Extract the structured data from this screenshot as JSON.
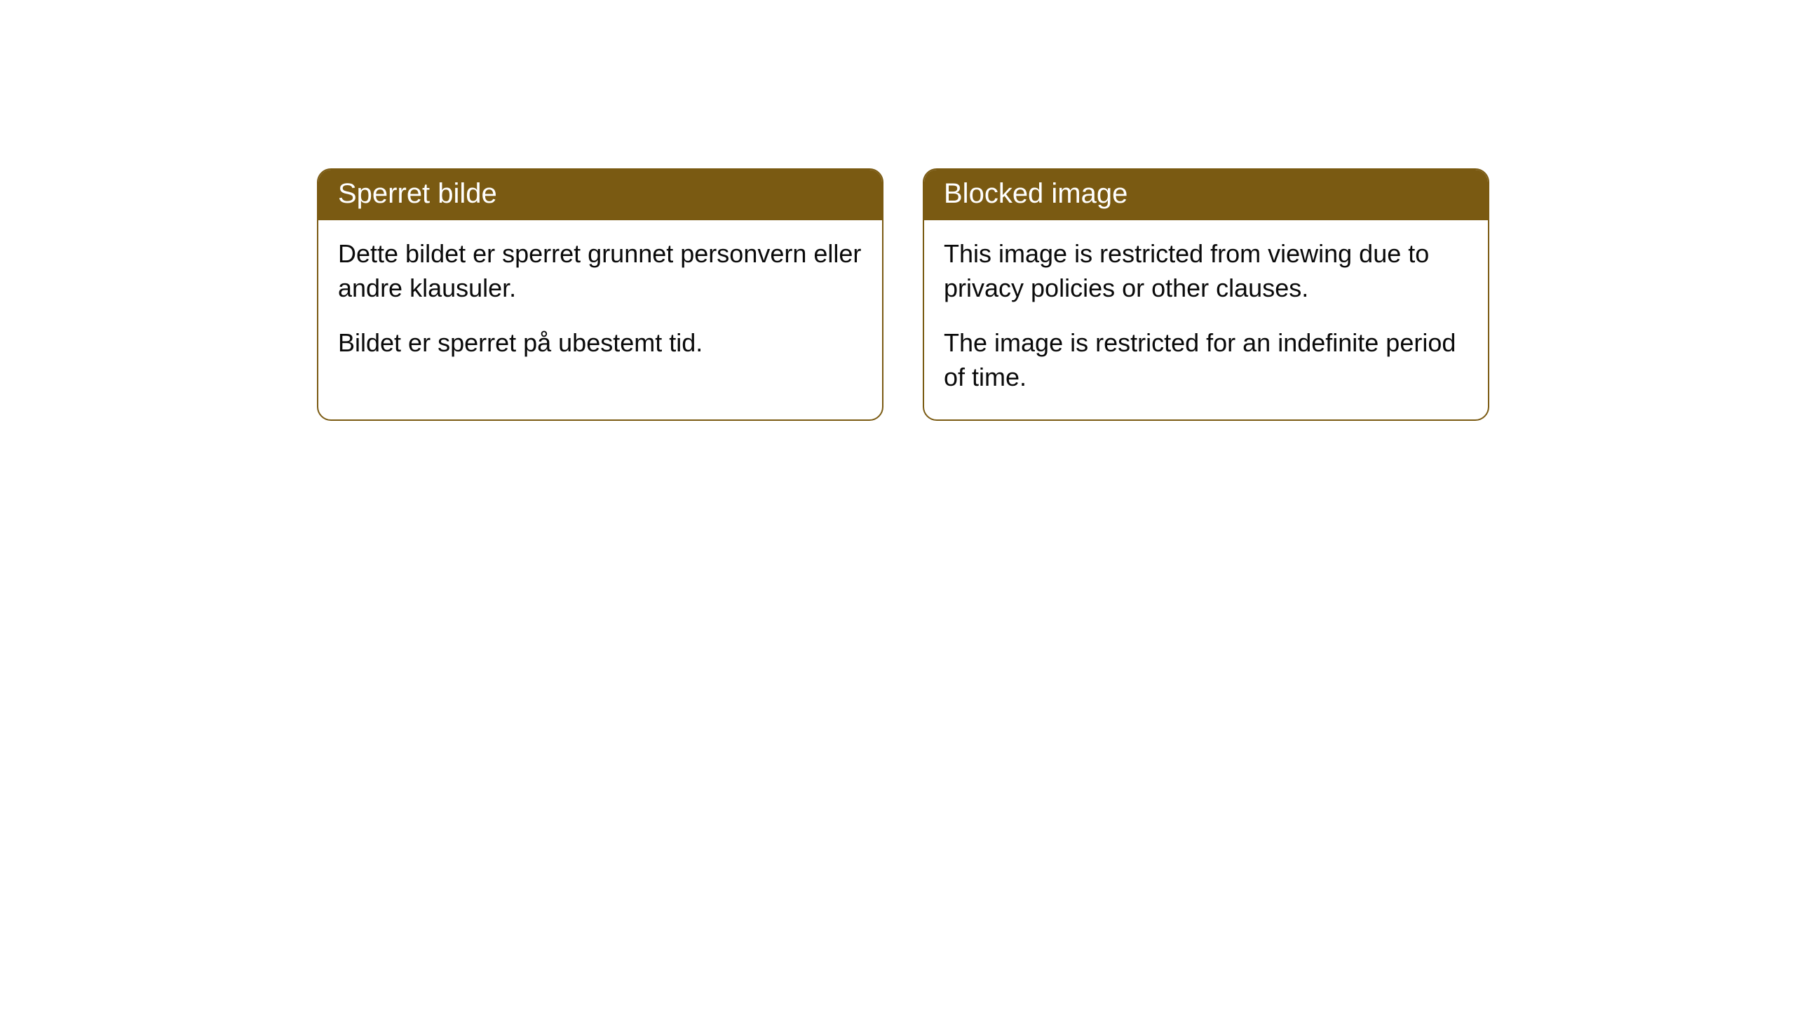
{
  "cards": [
    {
      "title": "Sperret bilde",
      "paragraph1": "Dette bildet er sperret grunnet personvern eller andre klausuler.",
      "paragraph2": "Bildet er sperret på ubestemt tid."
    },
    {
      "title": "Blocked image",
      "paragraph1": "This image is restricted from viewing due to privacy policies or other clauses.",
      "paragraph2": "The image is restricted for an indefinite period of time."
    }
  ],
  "style": {
    "accent_color": "#7a5a12",
    "background_color": "#ffffff",
    "text_color": "#0a0a0a",
    "header_text_color": "#ffffff",
    "border_radius": 20,
    "title_fontsize": 40,
    "body_fontsize": 36
  }
}
